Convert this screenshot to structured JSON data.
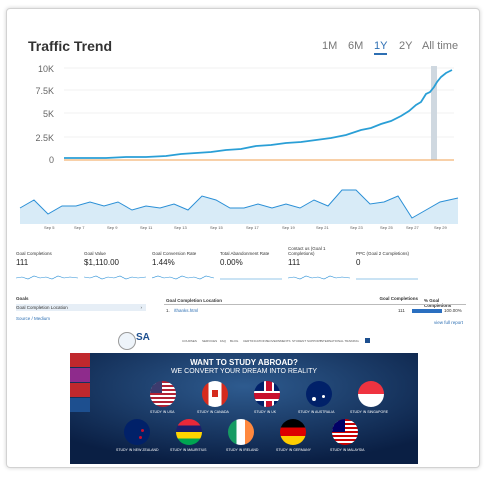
{
  "traffic": {
    "title": "Traffic Trend",
    "ranges": [
      "1M",
      "6M",
      "1Y",
      "2Y",
      "All time"
    ],
    "active_range": "1Y",
    "yticks": [
      "10K",
      "7.5K",
      "5K",
      "2.5K",
      "0"
    ],
    "colors": {
      "line": "#2a9fd6",
      "baseline": "#f0a050",
      "highlight": "#cfd8e0"
    }
  },
  "ga": {
    "xticks": [
      "Sep 5",
      "Sep 7",
      "Sep 9",
      "Sep 11",
      "Sep 13",
      "Sep 15",
      "Sep 17",
      "Sep 19",
      "Sep 21",
      "Sep 23",
      "Sep 25",
      "Sep 27",
      "Sep 29"
    ],
    "metrics": [
      {
        "label": "Goal Completions",
        "value": "111"
      },
      {
        "label": "Goal Value",
        "value": "$1,110.00"
      },
      {
        "label": "Goal Conversion Rate",
        "value": "1.44%"
      },
      {
        "label": "Total Abandonment Rate",
        "value": "0.00%"
      },
      {
        "label": "Contact us (Goal 1 Completions)",
        "value": "111"
      },
      {
        "label": "PPC (Goal 2 Completions)",
        "value": "0"
      }
    ],
    "goals_header": "Goals",
    "goal_loc": "Goal Completion Location",
    "source": "Source / Medium",
    "col_loc": "Goal Completion Location",
    "col_gc": "Goal Completions",
    "col_pct": "% Goal Completions",
    "row_index": "1.",
    "row_path": "/thanks.html",
    "row_gc": "111",
    "row_pct": "100.00%",
    "view_full": "view full report"
  },
  "site": {
    "logo": "SA",
    "nav": [
      "COURSES",
      "SERVICES",
      "FAQ",
      "BLOG",
      "CERTIFICATIONS",
      "GOVERNMENTS",
      "STUDENT SUPPORT",
      "INTERNATIONAL TRAINING"
    ],
    "hero_title": "WANT TO STUDY ABROAD?",
    "hero_sub": "WE CONVERT YOUR DREAM INTO REALITY",
    "row1": [
      "STUDY IN USA",
      "STUDY IN CANADA",
      "STUDY IN UK",
      "STUDY IN AUSTRALIA",
      "STUDY IN SINGAPORE"
    ],
    "row2": [
      "STUDY IN NEW ZEALAND",
      "STUDY IN MAURITIUS",
      "STUDY IN IRELAND",
      "STUDY IN GERMANY",
      "STUDY IN MALAYSIA"
    ]
  }
}
